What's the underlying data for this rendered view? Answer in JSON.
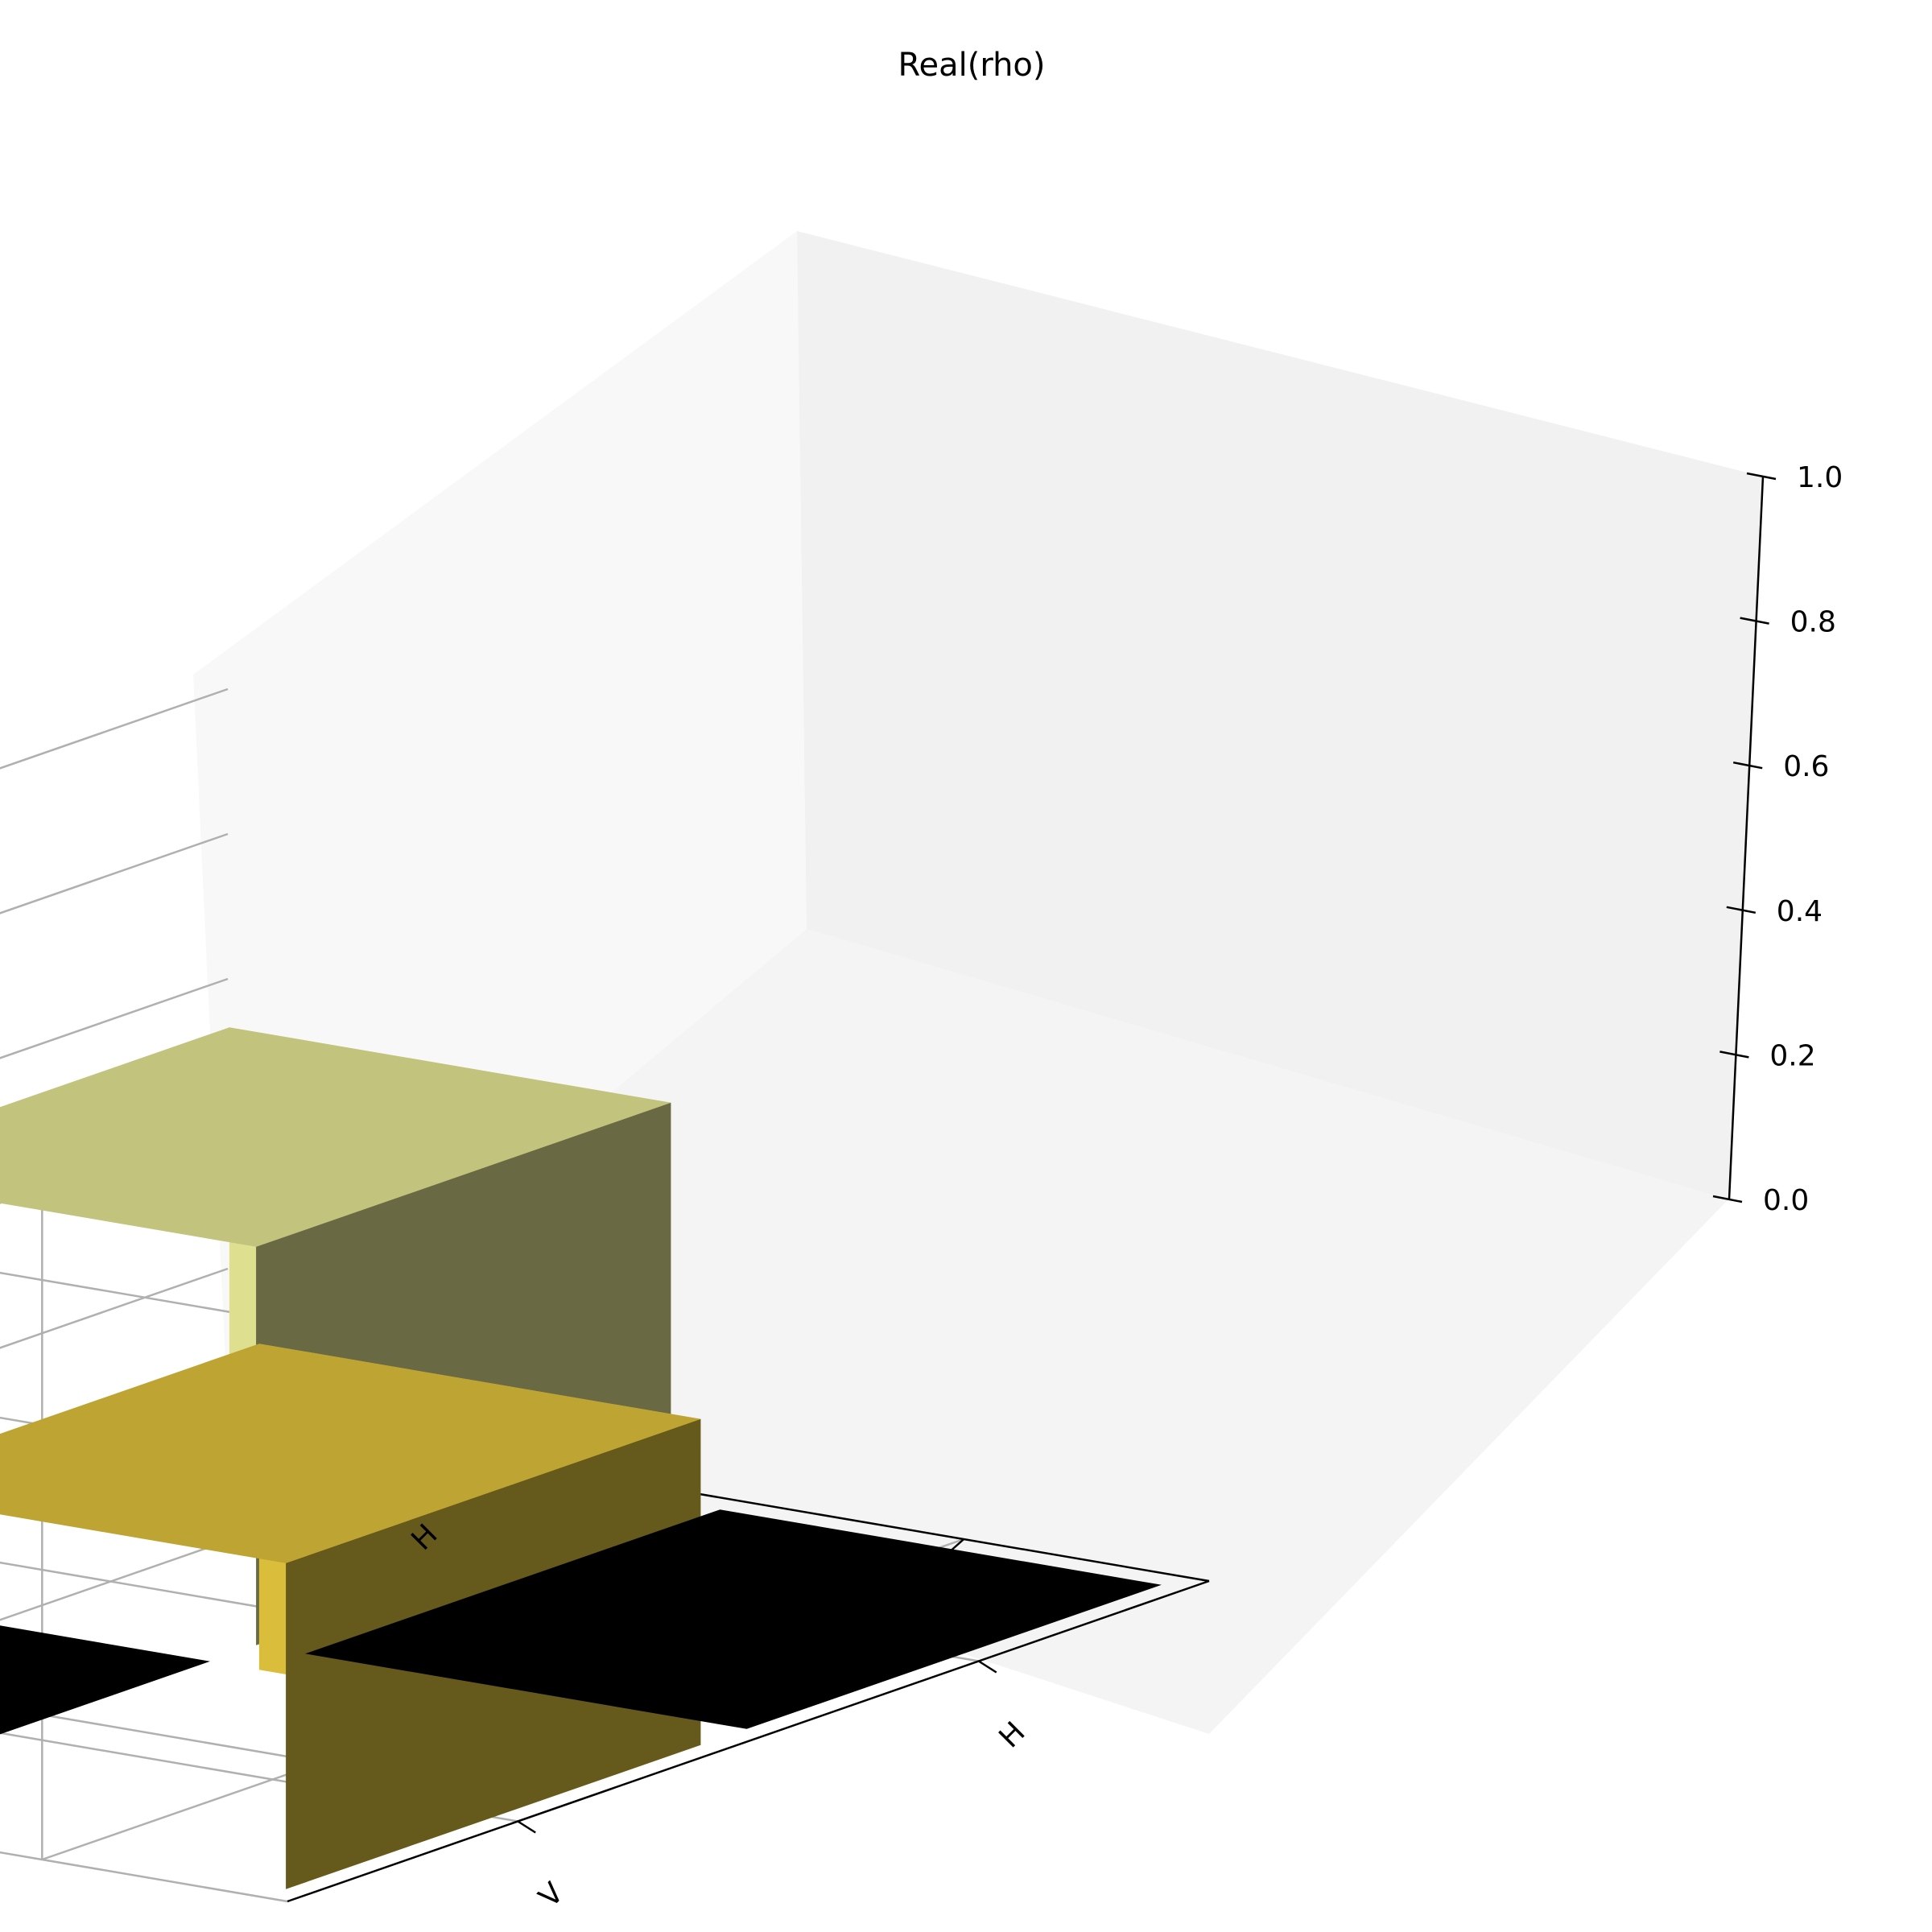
{
  "chart_data": {
    "type": "bar3d",
    "title": "Real(rho)",
    "x_categories": [
      "H",
      "V"
    ],
    "y_categories": [
      "H",
      "V"
    ],
    "zlim": [
      0,
      1
    ],
    "z_ticks": [
      "0.0",
      "0.2",
      "0.4",
      "0.6",
      "0.8",
      "1.0"
    ],
    "grid": true,
    "bars": [
      {
        "x": "H",
        "y": "H",
        "value": 0.55,
        "color": "#dfe08f"
      },
      {
        "x": "V",
        "y": "H",
        "value": 0.0,
        "color": "#000000"
      },
      {
        "x": "H",
        "y": "V",
        "value": 0.0,
        "color": "#000000"
      },
      {
        "x": "V",
        "y": "V",
        "value": 0.45,
        "color": "#d9bd3b"
      }
    ]
  }
}
